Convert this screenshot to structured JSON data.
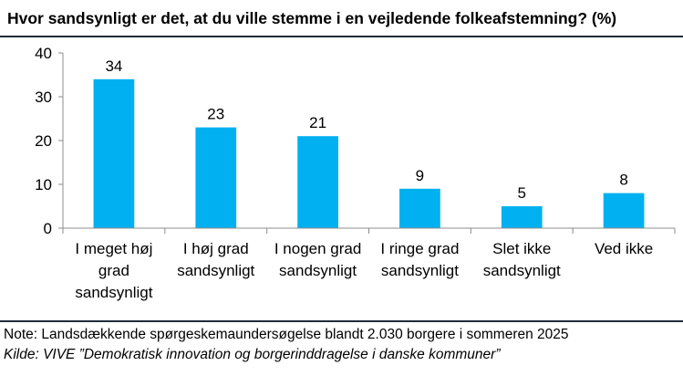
{
  "title": "Hvor sandsynligt er det, at du ville stemme i en vejledende folkeafstemning? (%)",
  "note": "Note: Landsdækkende spørgeskemaundersøgelse blandt 2.030 borgere i sommeren 2025",
  "source": "Kilde: VIVE ”Demokratisk innovation og borgerinddragelse i danske kommuner”",
  "chart_data": {
    "type": "bar",
    "title": "Hvor sandsynligt er det, at du ville stemme i en vejledende folkeafstemning? (%)",
    "categories": [
      [
        "I meget høj",
        "grad",
        "sandsynligt"
      ],
      [
        "I høj grad",
        "sandsynligt"
      ],
      [
        "I nogen grad",
        "sandsynligt"
      ],
      [
        "I ringe grad",
        "sandsynligt"
      ],
      [
        "Slet ikke",
        "sandsynligt"
      ],
      [
        "Ved ikke"
      ]
    ],
    "values": [
      34,
      23,
      21,
      9,
      5,
      8
    ],
    "ylim": [
      0,
      40
    ],
    "yticks": [
      0,
      10,
      20,
      30,
      40
    ],
    "xlabel": "",
    "ylabel": "",
    "grid": false,
    "data_labels": true,
    "colors": {
      "bar": "#00b0f0",
      "axis": "#8c8c8c",
      "rule": "#1f2d3a"
    }
  }
}
